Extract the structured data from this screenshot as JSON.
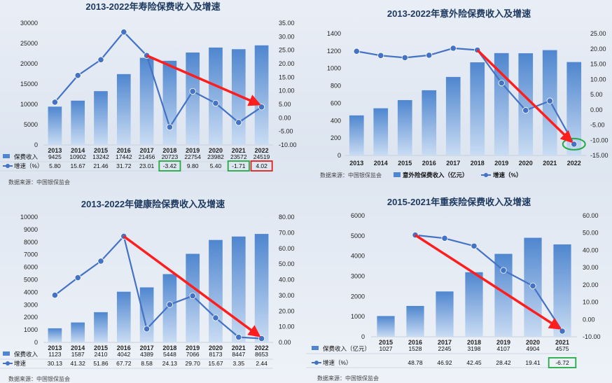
{
  "colors": {
    "bar": "#4f86cf",
    "bar_light": "#c9dcf3",
    "line": "#4472c4",
    "arrow": "#ff1e1e",
    "green_box": "#22aa44",
    "red_box": "#e02020",
    "grid": "#c8d0dc"
  },
  "chart_data": [
    {
      "type": "bar",
      "title": "2013-2022年寿险保费收入及增速",
      "categories": [
        "2013",
        "2014",
        "2015",
        "2016",
        "2017",
        "2018",
        "2019",
        "2020",
        "2021",
        "2022"
      ],
      "series": [
        {
          "name": "保费收入",
          "kind": "bar",
          "values": [
            9425,
            10902,
            13242,
            17442,
            21456,
            20723,
            22754,
            23982,
            23572,
            24519
          ],
          "labels": [
            "9425",
            "10902",
            "13242",
            "17442",
            "21456",
            "20723",
            "22754",
            "23982",
            "23572",
            "24519"
          ]
        },
        {
          "name": "增速（%）",
          "kind": "line",
          "values": [
            5.8,
            15.67,
            21.46,
            31.72,
            23.01,
            -3.42,
            9.8,
            5.4,
            -1.71,
            4.02
          ],
          "labels": [
            "5.80",
            "15.67",
            "21.46",
            "31.72",
            "23.01",
            "-3.42",
            "9.80",
            "5.40",
            "-1.71",
            "4.02"
          ]
        }
      ],
      "left_ticks": [
        "30000",
        "25000",
        "20000",
        "15000",
        "10000",
        "5000",
        "0"
      ],
      "right_ticks": [
        "35.00",
        "30.00",
        "25.00",
        "20.00",
        "15.00",
        "10.00",
        "5.00",
        "0.00",
        "-5.00",
        "-10.00"
      ],
      "ylim": [
        0,
        30000
      ],
      "y2lim": [
        -10,
        35
      ],
      "legend_in_table": true,
      "highlight_boxes": [
        {
          "series": 1,
          "index": 5,
          "color": "green"
        },
        {
          "series": 1,
          "index": 8,
          "color": "green"
        },
        {
          "series": 1,
          "index": 9,
          "color": "red"
        }
      ],
      "arrow": {
        "from": {
          "cat": 4,
          "y2": 23
        },
        "to": {
          "cat": 9,
          "y2": 4
        }
      },
      "ellipse": null,
      "source": "数据来源：中国银保监会"
    },
    {
      "type": "bar",
      "title": "2013-2022年意外险保费收入及增速",
      "categories": [
        "2013",
        "2014",
        "2015",
        "2016",
        "2017",
        "2018",
        "2019",
        "2020",
        "2021",
        "2022"
      ],
      "series": [
        {
          "name": "意外险保费收入（亿元）",
          "kind": "bar",
          "values": [
            460,
            542,
            636,
            749,
            902,
            1070,
            1176,
            1174,
            1210,
            1073
          ]
        },
        {
          "name": "增速（%）",
          "kind": "line",
          "values": [
            19.2,
            17.8,
            17.1,
            17.9,
            20.2,
            19.6,
            8.8,
            -0.2,
            2.9,
            -11.3
          ]
        }
      ],
      "left_ticks": [
        "1400",
        "1200",
        "1000",
        "800",
        "600",
        "400",
        "200",
        "0"
      ],
      "right_ticks": [
        "25.00",
        "20.00",
        "15.00",
        "10.00",
        "5.00",
        "0.00",
        "-5.00",
        "-10.00",
        "-15.00"
      ],
      "ylim": [
        0,
        1400
      ],
      "y2lim": [
        -15,
        25
      ],
      "legend_in_table": false,
      "arrow": {
        "from": {
          "cat": 5,
          "y2": 19.6
        },
        "to": {
          "cat": 9,
          "y2": -11.3
        }
      },
      "ellipse": {
        "cat": 9,
        "y2": -11.3
      },
      "source": "数据来源：中国银保监会"
    },
    {
      "type": "bar",
      "title": "2013-2022年健康险保费收入及增速",
      "categories": [
        "2013",
        "2014",
        "2015",
        "2016",
        "2017",
        "2018",
        "2019",
        "2020",
        "2021",
        "2022"
      ],
      "series": [
        {
          "name": "保费收入",
          "kind": "bar",
          "values": [
            1123,
            1587,
            2410,
            4042,
            4389,
            5448,
            7066,
            8173,
            8447,
            8653
          ],
          "labels": [
            "1123",
            "1587",
            "2410",
            "4042",
            "4389",
            "5448",
            "7066",
            "8173",
            "8447",
            "8653"
          ]
        },
        {
          "name": "增速",
          "kind": "line",
          "values": [
            30.13,
            41.32,
            51.86,
            67.72,
            8.58,
            24.13,
            29.7,
            15.67,
            3.35,
            2.44
          ],
          "labels": [
            "30.13",
            "41.32",
            "51.86",
            "67.72",
            "8.58",
            "24.13",
            "29.70",
            "15.67",
            "3.35",
            "2.44"
          ]
        }
      ],
      "left_ticks": [
        "10000",
        "9000",
        "8000",
        "7000",
        "6000",
        "5000",
        "4000",
        "3000",
        "2000",
        "1000",
        "0"
      ],
      "right_ticks": [
        "80.00",
        "70.00",
        "60.00",
        "50.00",
        "40.00",
        "30.00",
        "20.00",
        "10.00",
        "0.00"
      ],
      "ylim": [
        0,
        10000
      ],
      "y2lim": [
        0,
        80
      ],
      "legend_in_table": true,
      "arrow": {
        "from": {
          "cat": 3,
          "y2": 67.72
        },
        "to": {
          "cat": 9,
          "y2": 2.44
        }
      },
      "ellipse": null,
      "source": "数据来源：中国银保监会"
    },
    {
      "type": "bar",
      "title": "2015-2021年重疾险保费收入及增速",
      "categories": [
        "2015",
        "2016",
        "2017",
        "2018",
        "2019",
        "2020",
        "2021"
      ],
      "series": [
        {
          "name": "保费收入（亿元）",
          "kind": "bar",
          "values": [
            1027,
            1528,
            2245,
            3198,
            4107,
            4904,
            4575
          ],
          "labels": [
            "1027",
            "1528",
            "2245",
            "3198",
            "4107",
            "4904",
            "4575"
          ]
        },
        {
          "name": "增速（%）",
          "kind": "line",
          "values": [
            null,
            48.78,
            46.92,
            42.45,
            28.42,
            19.41,
            -6.72
          ],
          "labels": [
            "",
            "48.78",
            "46.92",
            "42.45",
            "28.42",
            "19.41",
            "-6.72"
          ]
        }
      ],
      "left_ticks": [
        "6000",
        "5000",
        "4000",
        "3000",
        "2000",
        "1000",
        "0"
      ],
      "right_ticks": [
        "60.00",
        "50.00",
        "40.00",
        "30.00",
        "20.00",
        "10.00",
        "0.00",
        "-10.00"
      ],
      "ylim": [
        0,
        6000
      ],
      "y2lim": [
        -10,
        60
      ],
      "legend_in_table": true,
      "highlight_boxes": [
        {
          "series": 1,
          "index": 6,
          "color": "green"
        }
      ],
      "arrow": {
        "from": {
          "cat": 1,
          "y2": 48.78
        },
        "to": {
          "cat": 6,
          "y2": -6.72
        }
      },
      "ellipse": null,
      "source": "数据来源：中国银保监会"
    }
  ]
}
